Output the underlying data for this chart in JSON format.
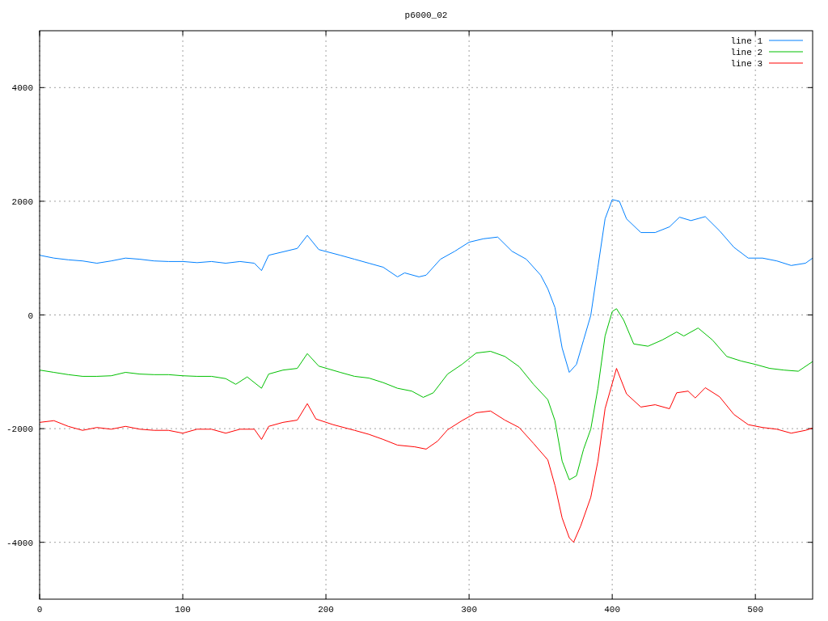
{
  "chart_data": {
    "type": "line",
    "title": "p6000_02",
    "xlim": [
      0,
      540
    ],
    "ylim": [
      -5000,
      5000
    ],
    "xticks": [
      0,
      100,
      200,
      300,
      400,
      500
    ],
    "yticks": [
      {
        "value": -4000,
        "label": "-4000"
      },
      {
        "value": -2000,
        "label": "-2000"
      },
      {
        "value": 0,
        "label": "0"
      },
      {
        "value": 2000,
        "label": "2000"
      },
      {
        "value": 4000,
        "label": "4000"
      }
    ],
    "grid": true,
    "legend": "top right",
    "line_style": "solid",
    "marker": "none",
    "series": [
      {
        "name": "line 1",
        "color": "#0080ff",
        "x": [
          0,
          10,
          20,
          30,
          40,
          50,
          60,
          70,
          80,
          90,
          100,
          110,
          120,
          130,
          140,
          150,
          155,
          160,
          170,
          180,
          187,
          195,
          210,
          220,
          230,
          240,
          250,
          255,
          265,
          270,
          280,
          290,
          300,
          310,
          320,
          330,
          340,
          350,
          355,
          360,
          365,
          370,
          375,
          380,
          385,
          390,
          395,
          400,
          405,
          410,
          420,
          430,
          440,
          447,
          455,
          465,
          475,
          485,
          495,
          505,
          515,
          525,
          535,
          540
        ],
        "values": [
          1050,
          1000,
          970,
          950,
          910,
          950,
          1000,
          980,
          950,
          940,
          940,
          920,
          940,
          910,
          940,
          910,
          780,
          1050,
          1110,
          1170,
          1400,
          1150,
          1050,
          980,
          910,
          840,
          670,
          740,
          670,
          700,
          980,
          1120,
          1280,
          1340,
          1370,
          1120,
          980,
          700,
          460,
          130,
          -580,
          -1010,
          -870,
          -440,
          -10,
          840,
          1690,
          2030,
          2000,
          1690,
          1450,
          1450,
          1550,
          1720,
          1660,
          1730,
          1480,
          1190,
          1000,
          1000,
          950,
          870,
          910,
          1000
        ]
      },
      {
        "name": "line 2",
        "color": "#00c000",
        "x": [
          0,
          10,
          20,
          30,
          40,
          50,
          60,
          70,
          80,
          90,
          100,
          110,
          120,
          130,
          137,
          145,
          155,
          160,
          170,
          180,
          187,
          195,
          210,
          220,
          230,
          240,
          250,
          260,
          268,
          275,
          285,
          295,
          305,
          315,
          325,
          335,
          345,
          355,
          360,
          365,
          370,
          375,
          380,
          385,
          390,
          395,
          400,
          403,
          408,
          415,
          425,
          435,
          445,
          450,
          460,
          470,
          480,
          490,
          500,
          510,
          520,
          530,
          540
        ],
        "values": [
          -970,
          -1010,
          -1050,
          -1080,
          -1080,
          -1070,
          -1010,
          -1040,
          -1050,
          -1050,
          -1070,
          -1080,
          -1080,
          -1120,
          -1220,
          -1090,
          -1290,
          -1040,
          -970,
          -940,
          -680,
          -900,
          -1010,
          -1080,
          -1110,
          -1190,
          -1290,
          -1340,
          -1450,
          -1370,
          -1040,
          -870,
          -670,
          -640,
          -730,
          -910,
          -1220,
          -1490,
          -1860,
          -2570,
          -2900,
          -2830,
          -2360,
          -2010,
          -1290,
          -370,
          60,
          110,
          -90,
          -510,
          -550,
          -440,
          -300,
          -370,
          -230,
          -440,
          -730,
          -810,
          -870,
          -940,
          -970,
          -990,
          -820
        ]
      },
      {
        "name": "line 3",
        "color": "#ff0000",
        "x": [
          0,
          10,
          20,
          30,
          40,
          50,
          60,
          70,
          80,
          90,
          100,
          110,
          120,
          130,
          140,
          150,
          155,
          160,
          170,
          180,
          187,
          193,
          205,
          220,
          230,
          240,
          250,
          262,
          270,
          278,
          285,
          295,
          305,
          315,
          325,
          335,
          345,
          355,
          360,
          365,
          370,
          373,
          378,
          385,
          390,
          395,
          403,
          410,
          420,
          430,
          440,
          445,
          453,
          458,
          465,
          475,
          485,
          495,
          505,
          515,
          525,
          535,
          540
        ],
        "values": [
          -1890,
          -1860,
          -1960,
          -2030,
          -1980,
          -2010,
          -1960,
          -2010,
          -2030,
          -2030,
          -2080,
          -2010,
          -2010,
          -2080,
          -2010,
          -2010,
          -2190,
          -1960,
          -1890,
          -1850,
          -1560,
          -1830,
          -1930,
          -2030,
          -2100,
          -2190,
          -2290,
          -2320,
          -2360,
          -2220,
          -2020,
          -1860,
          -1720,
          -1690,
          -1850,
          -1980,
          -2260,
          -2550,
          -3000,
          -3570,
          -3920,
          -4000,
          -3710,
          -3210,
          -2570,
          -1650,
          -940,
          -1390,
          -1620,
          -1580,
          -1650,
          -1370,
          -1340,
          -1460,
          -1280,
          -1440,
          -1750,
          -1930,
          -1980,
          -2010,
          -2080,
          -2030,
          -1990
        ]
      }
    ]
  }
}
